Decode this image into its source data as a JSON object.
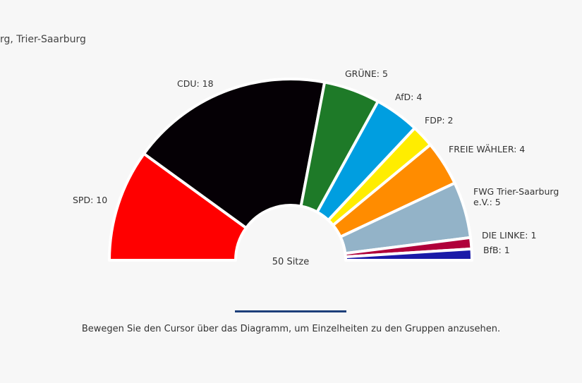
{
  "title": "rg, Trier-Saarburg",
  "hint": "Bewegen Sie den Cursor über das Diagramm, um Einzelheiten zu den Gruppen anzusehen.",
  "chart_data": {
    "type": "pie",
    "variant": "semicircle-donut",
    "total_label": "50 Sitze",
    "total": 50,
    "categories": [
      "SPD",
      "CDU",
      "GRÜNE",
      "AfD",
      "FDP",
      "FREIE WÄHLER",
      "FWG Trier-Saarburg e.V.",
      "DIE LINKE",
      "BfB"
    ],
    "values": [
      10,
      18,
      5,
      4,
      2,
      4,
      5,
      1,
      1
    ],
    "labels": [
      "SPD: 10",
      "CDU: 18",
      "GRÜNE: 5",
      "AfD: 4",
      "FDP: 2",
      "FREIE WÄHLER: 4",
      "FWG Trier-Saarburg e.V.: 5",
      "DIE LINKE: 1",
      "BfB: 1"
    ],
    "colors": [
      "#ff0000",
      "#050005",
      "#1e7a28",
      "#009ee0",
      "#ffed00",
      "#ff8c00",
      "#93b3c8",
      "#b0003a",
      "#1a1aa8"
    ]
  }
}
